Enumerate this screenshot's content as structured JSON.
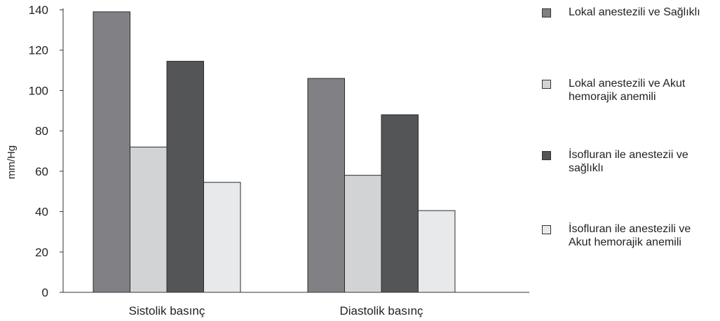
{
  "chart_data": {
    "type": "bar",
    "categories": [
      "Sistolik basınç",
      "Diastolik basınç"
    ],
    "series": [
      {
        "name": "Lokal anestezili ve Sağlıklı",
        "values": [
          139,
          106
        ],
        "color": "#818185"
      },
      {
        "name": "Lokal anestezili ve Akut hemorajik anemili",
        "values": [
          72,
          58
        ],
        "color": "#d2d3d5"
      },
      {
        "name": "İsofluran ile anestezii ve sağlıklı",
        "values": [
          114.5,
          88
        ],
        "color": "#545557"
      },
      {
        "name": "İsofluran ile anestezili ve Akut hemorajik anemili",
        "values": [
          54.5,
          40.5
        ],
        "color": "#e8e9ea"
      }
    ],
    "title": "",
    "xlabel": "",
    "ylabel": "mm/Hg",
    "ylim": [
      0,
      140
    ],
    "yticks": [
      "0",
      "20",
      "40",
      "60",
      "80",
      "100",
      "120",
      "140"
    ],
    "grid": false,
    "legend_position": "right"
  },
  "legend": {
    "items": [
      {
        "label": "Lokal anestezili ve Sağlıklı"
      },
      {
        "label": "Lokal anestezili ve Akut\nhemorajik anemili"
      },
      {
        "label": "İsofluran ile anestezii ve\nsağlıklı"
      },
      {
        "label": "İsofluran ile anestezili ve\nAkut hemorajik anemili"
      }
    ]
  }
}
